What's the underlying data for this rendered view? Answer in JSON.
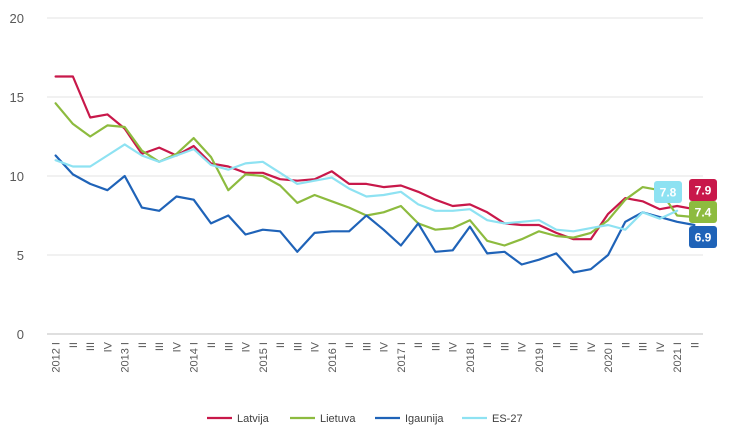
{
  "chart_data": {
    "type": "line",
    "x": [
      "2012 I",
      "II",
      "III",
      "IV",
      "2013 I",
      "II",
      "III",
      "IV",
      "2014 I",
      "II",
      "III",
      "IV",
      "2015 I",
      "II",
      "III",
      "IV",
      "2016 I",
      "II",
      "III",
      "IV",
      "2017 I",
      "II",
      "III",
      "IV",
      "2018 I",
      "II",
      "III",
      "IV",
      "2019 I",
      "II",
      "III",
      "IV",
      "2020 I",
      "II",
      "III",
      "IV",
      "2021 I",
      "II"
    ],
    "ylim": [
      0,
      20
    ],
    "yticks": [
      0,
      5,
      10,
      15,
      20
    ],
    "grid": true,
    "legend_position": "bottom",
    "series": [
      {
        "name": "Latvija",
        "color": "#c8184a",
        "values": [
          16.3,
          16.3,
          13.7,
          13.9,
          13.0,
          11.4,
          11.8,
          11.3,
          11.9,
          10.8,
          10.6,
          10.2,
          10.2,
          9.8,
          9.7,
          9.8,
          10.3,
          9.5,
          9.5,
          9.3,
          9.4,
          9.0,
          8.5,
          8.1,
          8.2,
          7.7,
          7.0,
          6.9,
          6.9,
          6.4,
          6.0,
          6.0,
          7.6,
          8.6,
          8.4,
          7.9,
          8.1,
          7.9
        ],
        "end_label": "7.9"
      },
      {
        "name": "Lietuva",
        "color": "#8dbb3f",
        "values": [
          14.6,
          13.3,
          12.5,
          13.2,
          13.1,
          11.6,
          10.9,
          11.4,
          12.4,
          11.2,
          9.1,
          10.1,
          10.0,
          9.4,
          8.3,
          8.8,
          8.4,
          8.0,
          7.5,
          7.7,
          8.1,
          7.0,
          6.6,
          6.7,
          7.2,
          5.9,
          5.6,
          6.0,
          6.5,
          6.2,
          6.1,
          6.4,
          7.2,
          8.5,
          9.3,
          9.1,
          7.5,
          7.4
        ],
        "end_label": "7.4"
      },
      {
        "name": "Igaunija",
        "color": "#1f63b8",
        "values": [
          11.3,
          10.1,
          9.5,
          9.1,
          10.0,
          8.0,
          7.8,
          8.7,
          8.5,
          7.0,
          7.5,
          6.3,
          6.6,
          6.5,
          5.2,
          6.4,
          6.5,
          6.5,
          7.5,
          6.6,
          5.6,
          7.0,
          5.2,
          5.3,
          6.8,
          5.1,
          5.2,
          4.4,
          4.7,
          5.1,
          3.9,
          4.1,
          5.0,
          7.1,
          7.7,
          7.4,
          7.1,
          6.9
        ],
        "end_label": "6.9"
      },
      {
        "name": "ES-27",
        "color": "#8ee2f2",
        "values": [
          11.0,
          10.6,
          10.6,
          11.3,
          12.0,
          11.3,
          10.9,
          11.3,
          11.7,
          10.7,
          10.4,
          10.8,
          10.9,
          10.2,
          9.5,
          9.7,
          9.9,
          9.2,
          8.7,
          8.8,
          9.0,
          8.2,
          7.8,
          7.8,
          7.9,
          7.2,
          7.0,
          7.1,
          7.2,
          6.6,
          6.5,
          6.7,
          6.9,
          6.6,
          7.7,
          7.3,
          7.8,
          null
        ],
        "end_label": "7.8"
      }
    ]
  }
}
